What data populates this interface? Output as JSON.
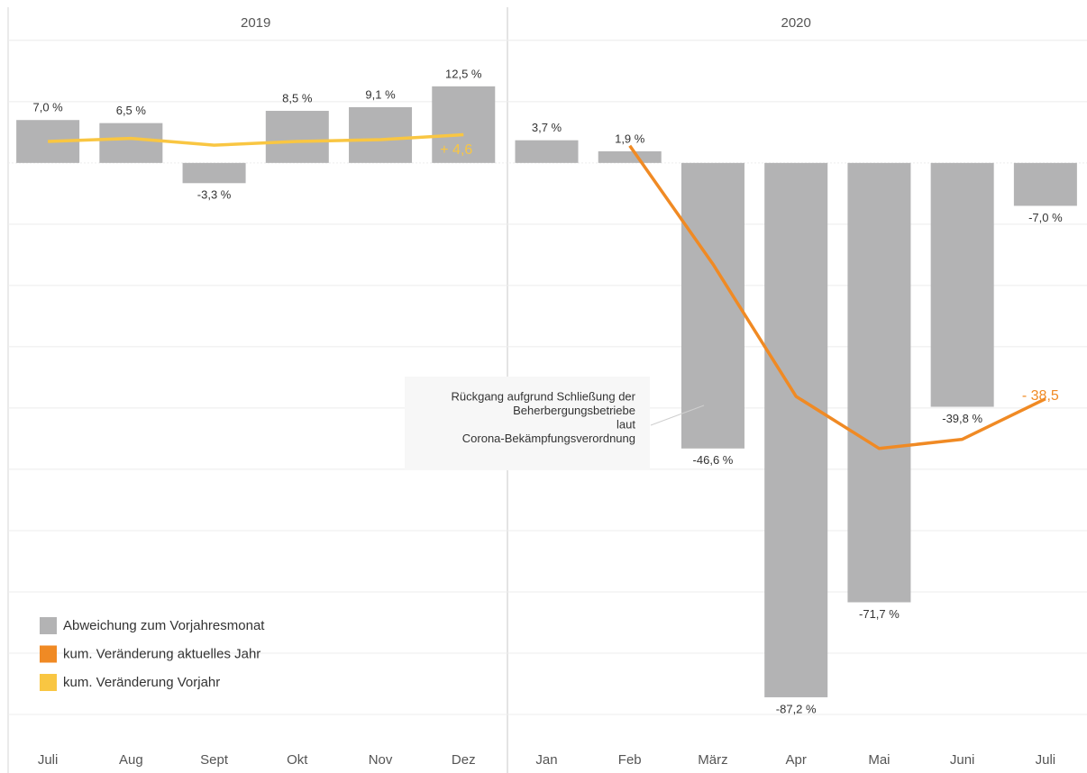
{
  "chart_data": {
    "type": "bar",
    "categories": [
      "Juli",
      "Aug",
      "Sept",
      "Okt",
      "Nov",
      "Dez",
      "Jan",
      "Feb",
      "März",
      "Apr",
      "Mai",
      "Juni",
      "Juli"
    ],
    "x_groups": [
      {
        "label": "2019",
        "span": 6
      },
      {
        "label": "2020",
        "span": 7
      }
    ],
    "series": [
      {
        "name": "Abweichung zum Vorjahresmonat",
        "type": "bar",
        "color": "#b3b3b4",
        "values": [
          7.0,
          6.5,
          -3.3,
          8.5,
          9.1,
          12.5,
          3.7,
          1.9,
          -46.6,
          -87.2,
          -71.7,
          -39.8,
          -7.0
        ],
        "value_labels": [
          "7,0 %",
          "6,5 %",
          "-3,3 %",
          "8,5 %",
          "9,1 %",
          "12,5 %",
          "3,7 %",
          "1,9 %",
          "-46,6 %",
          "-87,2 %",
          "-71,7 %",
          "-39,8 %",
          "-7,0 %"
        ]
      },
      {
        "name": "kum. Veränderung aktuelles Jahr",
        "type": "line",
        "color": "#f08a24",
        "values": [
          null,
          null,
          null,
          null,
          null,
          null,
          null,
          2.8,
          -16.5,
          -38.1,
          -46.6,
          -45.1,
          -38.5
        ],
        "value_labels": [
          null,
          null,
          null,
          null,
          null,
          null,
          null,
          null,
          null,
          null,
          null,
          null,
          "- 38,5"
        ]
      },
      {
        "name": "kum. Veränderung Vorjahr",
        "type": "line",
        "color": "#f9c642",
        "values": [
          3.5,
          4.0,
          2.9,
          3.5,
          3.8,
          4.6,
          null,
          null,
          null,
          null,
          null,
          null,
          null
        ],
        "value_labels": [
          null,
          null,
          null,
          null,
          null,
          "+ 4,6",
          null,
          null,
          null,
          null,
          null,
          null,
          null
        ]
      }
    ],
    "annotation": {
      "lines": [
        "Rückgang aufgrund Schließung der",
        "Beherbergungsbetriebe",
        "laut",
        "Corona-Bekämpfungsverordnung"
      ]
    },
    "ylim": [
      -95,
      26
    ],
    "yticks": [
      20,
      10,
      0,
      -10,
      -20,
      -30,
      -40,
      -50,
      -60,
      -70,
      -80,
      -90
    ],
    "grid": true,
    "legend": "bottom-left"
  }
}
